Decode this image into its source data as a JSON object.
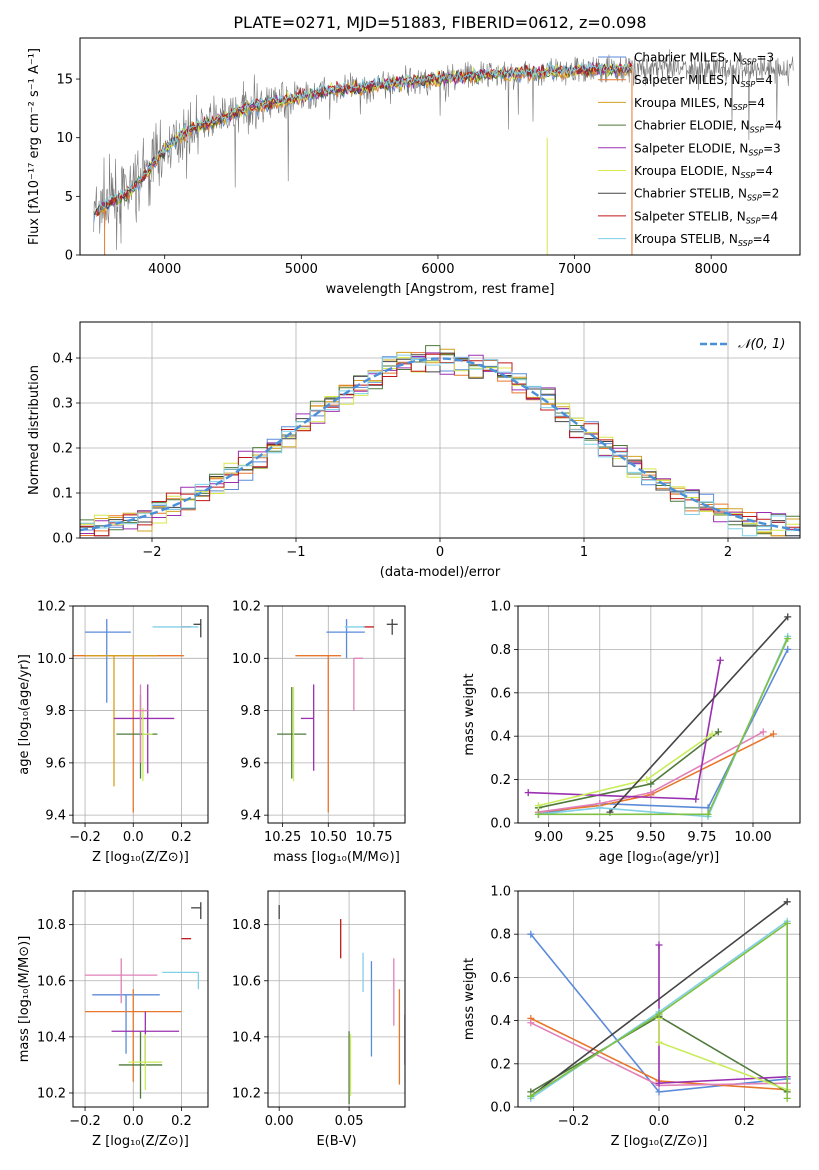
{
  "figure": {
    "title": "PLATE=0271, MJD=51883, FIBERID=0612, z=0.098"
  },
  "colors": {
    "chabrier_miles": "#5b8bd8",
    "salpeter_miles": "#e8772e",
    "kroupa_miles": "#d4a020",
    "chabrier_elodie": "#4f7a3a",
    "salpeter_elodie": "#9a30b0",
    "kroupa_elodie": "#d8e84a",
    "chabrier_stelib": "#444444",
    "salpeter_stelib": "#c01818",
    "kroupa_stelib": "#80d0e8",
    "pink": "#e080b8",
    "light_green": "#c8ec5a",
    "green": "#80c040",
    "gray_spectrum": "#777777",
    "normal_curve": "#4a90d9"
  },
  "chart_data": [
    {
      "id": "spectrum",
      "type": "line",
      "title": "PLATE=0271, MJD=51883, FIBERID=0612, z=0.098",
      "xlabel": "wavelength [Angstrom, rest frame]",
      "ylabel": "Flux [fλ10⁻¹⁷ erg cm⁻² s⁻¹ A⁻¹]",
      "xlim": [
        3380,
        8650
      ],
      "ylim": [
        0,
        18.5
      ],
      "xticks": [
        4000,
        5000,
        6000,
        7000,
        8000
      ],
      "yticks": [
        0,
        5,
        10,
        15
      ],
      "grid": false,
      "legend_placement": "right",
      "legend": [
        {
          "label": "Chabrier MILES, N",
          "sub": "SSP",
          "suffix": "=3",
          "color": "chabrier_miles"
        },
        {
          "label": "Salpeter MILES, N",
          "sub": "SSP",
          "suffix": "=4",
          "color": "salpeter_miles"
        },
        {
          "label": "Kroupa MILES, N",
          "sub": "SSP",
          "suffix": "=4",
          "color": "kroupa_miles"
        },
        {
          "label": "Chabrier ELODIE, N",
          "sub": "SSP",
          "suffix": "=4",
          "color": "chabrier_elodie"
        },
        {
          "label": "Salpeter ELODIE, N",
          "sub": "SSP",
          "suffix": "=3",
          "color": "salpeter_elodie"
        },
        {
          "label": "Kroupa ELODIE, N",
          "sub": "SSP",
          "suffix": "=4",
          "color": "kroupa_elodie"
        },
        {
          "label": "Chabrier STELIB, N",
          "sub": "SSP",
          "suffix": "=2",
          "color": "chabrier_stelib"
        },
        {
          "label": "Salpeter STELIB, N",
          "sub": "SSP",
          "suffix": "=4",
          "color": "salpeter_stelib"
        },
        {
          "label": "Kroupa STELIB, N",
          "sub": "SSP",
          "suffix": "=4",
          "color": "kroupa_stelib"
        }
      ],
      "continuum": {
        "x": [
          3480,
          3600,
          3700,
          3800,
          3900,
          4000,
          4100,
          4200,
          4300,
          4400,
          4500,
          4600,
          4800,
          5000,
          5200,
          5400,
          5600,
          5800,
          6000,
          6200,
          6400,
          6600,
          6800,
          7000,
          7200,
          7400
        ],
        "y": [
          3.5,
          4.5,
          5.0,
          6.0,
          7.5,
          9.0,
          10.0,
          10.8,
          11.2,
          11.5,
          12.0,
          12.5,
          13.0,
          13.5,
          14.0,
          14.2,
          14.5,
          14.8,
          15.0,
          15.2,
          15.4,
          15.5,
          15.6,
          15.7,
          15.8,
          15.9
        ]
      }
    },
    {
      "id": "residuals",
      "type": "line",
      "xlabel": "(data-model)/error",
      "ylabel": "Normed distribution",
      "xlim": [
        -2.5,
        2.5
      ],
      "ylim": [
        0,
        0.48
      ],
      "xticks": [
        -2,
        -1,
        0,
        1,
        2
      ],
      "yticks": [
        0.0,
        0.1,
        0.2,
        0.3,
        0.4
      ],
      "grid": true,
      "legend_placement": "top-right",
      "legend": [
        {
          "label": "𝒩(0, 1)",
          "color": "normal_curve",
          "style": "dashed"
        }
      ],
      "series_colors": [
        "chabrier_miles",
        "salpeter_miles",
        "kroupa_miles",
        "chabrier_elodie",
        "salpeter_elodie",
        "kroupa_elodie",
        "chabrier_stelib",
        "salpeter_stelib",
        "kroupa_stelib"
      ]
    },
    {
      "id": "Z-age",
      "type": "scatter",
      "xlabel": "Z [log₁₀(Z/Z⊙)]",
      "ylabel": "age  [log₁₀(age/yr)]",
      "xlim": [
        -0.25,
        0.31
      ],
      "ylim": [
        9.37,
        10.2
      ],
      "xticks": [
        -0.2,
        0.0,
        0.2
      ],
      "yticks": [
        9.4,
        9.6,
        9.8,
        10.0,
        10.2
      ],
      "grid": true,
      "points": [
        {
          "x": -0.11,
          "y": 10.1,
          "xerr": [
            0.09,
            0.1
          ],
          "yerr": [
            0.27,
            0.05
          ],
          "color": "chabrier_miles"
        },
        {
          "x": 0.0,
          "y": 10.01,
          "xerr": [
            0.25,
            0.21
          ],
          "yerr": [
            0.6,
            0.0
          ],
          "color": "salpeter_miles"
        },
        {
          "x": -0.08,
          "y": 10.01,
          "xerr": [
            0.12,
            0.18
          ],
          "yerr": [
            0.5,
            0.0
          ],
          "color": "kroupa_miles"
        },
        {
          "x": 0.03,
          "y": 9.71,
          "xerr": [
            0.1,
            0.07
          ],
          "yerr": [
            0.17,
            0.15
          ],
          "color": "chabrier_elodie"
        },
        {
          "x": 0.06,
          "y": 9.77,
          "xerr": [
            0.14,
            0.11
          ],
          "yerr": [
            0.21,
            0.13
          ],
          "color": "salpeter_elodie"
        },
        {
          "x": 0.04,
          "y": 9.71,
          "xerr": [
            0.0,
            0.04
          ],
          "yerr": [
            0.18,
            0.1
          ],
          "color": "light_green"
        },
        {
          "x": 0.28,
          "y": 10.13,
          "xerr": [
            0.03,
            0.0
          ],
          "yerr": [
            0.05,
            0.02
          ],
          "color": "chabrier_stelib"
        },
        {
          "x": 0.24,
          "y": 10.12,
          "xerr": [
            0.04,
            0.0
          ],
          "yerr": [
            0.0,
            0.0
          ],
          "color": "salpeter_stelib"
        },
        {
          "x": 0.17,
          "y": 10.12,
          "xerr": [
            0.09,
            0.1
          ],
          "yerr": [
            0.0,
            0.0
          ],
          "color": "kroupa_stelib"
        },
        {
          "x": 0.03,
          "y": 9.8,
          "xerr": [
            0.03,
            0.03
          ],
          "yerr": [
            0.2,
            0.1
          ],
          "color": "pink"
        }
      ]
    },
    {
      "id": "mass-age",
      "type": "scatter",
      "xlabel": "mass [log₁₀(M/M⊙)]",
      "xlim": [
        10.17,
        10.92
      ],
      "ylim": [
        9.37,
        10.2
      ],
      "xticks": [
        10.25,
        10.5,
        10.75
      ],
      "yticks": [
        9.4,
        9.6,
        9.8,
        10.0,
        10.2
      ],
      "grid": true,
      "points": [
        {
          "x": 10.6,
          "y": 10.1,
          "xerr": [
            0.11,
            0.1
          ],
          "yerr": [
            0.1,
            0.05
          ],
          "color": "chabrier_miles"
        },
        {
          "x": 10.5,
          "y": 10.01,
          "xerr": [
            0.18,
            0.07
          ],
          "yerr": [
            0.6,
            0.0
          ],
          "color": "salpeter_miles"
        },
        {
          "x": 10.64,
          "y": 10.0,
          "xerr": [
            0.0,
            0.05
          ],
          "yerr": [
            0.2,
            0.0
          ],
          "color": "pink"
        },
        {
          "x": 10.3,
          "y": 9.71,
          "xerr": [
            0.08,
            0.08
          ],
          "yerr": [
            0.17,
            0.18
          ],
          "color": "chabrier_elodie"
        },
        {
          "x": 10.42,
          "y": 9.77,
          "xerr": [
            0.07,
            0.0
          ],
          "yerr": [
            0.2,
            0.13
          ],
          "color": "salpeter_elodie"
        },
        {
          "x": 10.31,
          "y": 9.71,
          "xerr": [
            0.0,
            0.0
          ],
          "yerr": [
            0.18,
            0.18
          ],
          "color": "light_green"
        },
        {
          "x": 10.85,
          "y": 10.13,
          "xerr": [
            0.03,
            0.03
          ],
          "yerr": [
            0.04,
            0.02
          ],
          "color": "chabrier_stelib"
        },
        {
          "x": 10.75,
          "y": 10.12,
          "xerr": [
            0.06,
            0.0
          ],
          "yerr": [
            0.0,
            0.0
          ],
          "color": "salpeter_stelib"
        },
        {
          "x": 10.65,
          "y": 10.12,
          "xerr": [
            0.06,
            0.05
          ],
          "yerr": [
            0.0,
            0.0
          ],
          "color": "kroupa_stelib"
        }
      ]
    },
    {
      "id": "age-weight",
      "type": "line",
      "xlabel": "age  [log₁₀(age/yr)]",
      "ylabel": "mass weight",
      "xlim": [
        8.85,
        10.23
      ],
      "ylim": [
        0,
        1.0
      ],
      "xticks": [
        9.0,
        9.25,
        9.5,
        9.75,
        10.0
      ],
      "yticks": [
        0.0,
        0.2,
        0.4,
        0.6,
        0.8,
        1.0
      ],
      "grid": true,
      "series": [
        {
          "color": "chabrier_miles",
          "x": [
            8.95,
            9.25,
            9.78,
            10.17
          ],
          "y": [
            0.04,
            0.09,
            0.07,
            0.8
          ]
        },
        {
          "color": "salpeter_miles",
          "x": [
            8.95,
            9.25,
            9.5,
            10.1
          ],
          "y": [
            0.05,
            0.08,
            0.13,
            0.41
          ]
        },
        {
          "color": "pink",
          "x": [
            8.95,
            9.25,
            9.5,
            10.05
          ],
          "y": [
            0.05,
            0.09,
            0.14,
            0.42
          ]
        },
        {
          "color": "chabrier_elodie",
          "x": [
            8.95,
            9.5,
            9.83
          ],
          "y": [
            0.07,
            0.18,
            0.42
          ]
        },
        {
          "color": "salpeter_elodie",
          "x": [
            8.9,
            9.72,
            9.84
          ],
          "y": [
            0.14,
            0.11,
            0.75
          ]
        },
        {
          "color": "light_green",
          "x": [
            8.95,
            9.48,
            9.8
          ],
          "y": [
            0.08,
            0.2,
            0.41
          ]
        },
        {
          "color": "chabrier_stelib",
          "x": [
            9.3,
            10.17
          ],
          "y": [
            0.05,
            0.95
          ]
        },
        {
          "color": "kroupa_stelib",
          "x": [
            8.95,
            9.25,
            9.78,
            10.17
          ],
          "y": [
            0.04,
            0.07,
            0.03,
            0.86
          ]
        },
        {
          "color": "green",
          "x": [
            8.95,
            9.78,
            10.17
          ],
          "y": [
            0.04,
            0.04,
            0.85
          ]
        }
      ]
    },
    {
      "id": "Z-mass",
      "type": "scatter",
      "xlabel": "Z [log₁₀(Z/Z⊙)]",
      "ylabel": "mass [log₁₀(M/M⊙)]",
      "xlim": [
        -0.25,
        0.31
      ],
      "ylim": [
        10.15,
        10.92
      ],
      "xticks": [
        -0.2,
        0.0,
        0.2
      ],
      "yticks": [
        10.2,
        10.4,
        10.6,
        10.8
      ],
      "grid": true,
      "points": [
        {
          "x": -0.03,
          "y": 10.55,
          "xerr": [
            0.14,
            0.14
          ],
          "yerr": [
            0.21,
            0.0
          ],
          "color": "chabrier_miles"
        },
        {
          "x": 0.0,
          "y": 10.49,
          "xerr": [
            0.2,
            0.2
          ],
          "yerr": [
            0.25,
            0.08
          ],
          "color": "salpeter_miles"
        },
        {
          "x": -0.05,
          "y": 10.62,
          "xerr": [
            0.15,
            0.15
          ],
          "yerr": [
            0.1,
            0.06
          ],
          "color": "pink"
        },
        {
          "x": 0.03,
          "y": 10.3,
          "xerr": [
            0.09,
            0.09
          ],
          "yerr": [
            0.12,
            0.12
          ],
          "color": "chabrier_elodie"
        },
        {
          "x": 0.05,
          "y": 10.42,
          "xerr": [
            0.14,
            0.14
          ],
          "yerr": [
            0.12,
            0.07
          ],
          "color": "salpeter_elodie"
        },
        {
          "x": 0.05,
          "y": 10.31,
          "xerr": [
            0.07,
            0.07
          ],
          "yerr": [
            0.1,
            0.1
          ],
          "color": "light_green"
        },
        {
          "x": 0.28,
          "y": 10.86,
          "xerr": [
            0.04,
            0.0
          ],
          "yerr": [
            0.04,
            0.02
          ],
          "color": "chabrier_stelib"
        },
        {
          "x": 0.24,
          "y": 10.75,
          "xerr": [
            0.04,
            0.0
          ],
          "yerr": [
            0.0,
            0.0
          ],
          "color": "salpeter_stelib"
        },
        {
          "x": 0.27,
          "y": 10.63,
          "xerr": [
            0.15,
            0.0
          ],
          "yerr": [
            0.06,
            0.0
          ],
          "color": "kroupa_stelib"
        }
      ]
    },
    {
      "id": "EBV-mass",
      "type": "scatter",
      "xlabel": "E(B-V)",
      "xlim": [
        -0.008,
        0.09
      ],
      "ylim": [
        10.15,
        10.92
      ],
      "xticks": [
        0.0,
        0.05
      ],
      "yticks": [
        10.2,
        10.4,
        10.6,
        10.8
      ],
      "grid": true,
      "points": [
        {
          "x": 0.0,
          "y": 10.87,
          "yerr": [
            0.05,
            0.0
          ],
          "color": "chabrier_stelib"
        },
        {
          "x": 0.044,
          "y": 10.75,
          "yerr": [
            0.07,
            0.07
          ],
          "color": "salpeter_stelib"
        },
        {
          "x": 0.05,
          "y": 10.29,
          "yerr": [
            0.13,
            0.13
          ],
          "color": "chabrier_elodie"
        },
        {
          "x": 0.051,
          "y": 10.3,
          "yerr": [
            0.11,
            0.11
          ],
          "color": "light_green"
        },
        {
          "x": 0.06,
          "y": 10.63,
          "yerr": [
            0.07,
            0.07
          ],
          "color": "kroupa_stelib"
        },
        {
          "x": 0.066,
          "y": 10.5,
          "yerr": [
            0.17,
            0.17
          ],
          "color": "chabrier_miles"
        },
        {
          "x": 0.082,
          "y": 10.56,
          "yerr": [
            0.12,
            0.12
          ],
          "color": "pink"
        },
        {
          "x": 0.086,
          "y": 10.4,
          "yerr": [
            0.17,
            0.17
          ],
          "color": "salpeter_miles"
        },
        {
          "x": 0.09,
          "y": 10.39,
          "yerr": [
            0.09,
            0.09
          ],
          "color": "salpeter_elodie"
        }
      ]
    },
    {
      "id": "Z-weight",
      "type": "line",
      "xlabel": "Z [log₁₀(Z/Z⊙)]",
      "ylabel": "mass weight",
      "xlim": [
        -0.33,
        0.33
      ],
      "ylim": [
        0,
        1.0
      ],
      "xticks": [
        -0.2,
        0.0,
        0.2
      ],
      "yticks": [
        0.0,
        0.2,
        0.4,
        0.6,
        0.8,
        1.0
      ],
      "grid": true,
      "series": [
        {
          "color": "chabrier_miles",
          "x": [
            -0.3,
            0.0,
            0.3
          ],
          "y": [
            0.8,
            0.07,
            0.13
          ]
        },
        {
          "color": "salpeter_miles",
          "x": [
            -0.3,
            0.0,
            0.3
          ],
          "y": [
            0.41,
            0.12,
            0.08
          ]
        },
        {
          "color": "pink",
          "x": [
            -0.3,
            0.0,
            0.3
          ],
          "y": [
            0.39,
            0.1,
            0.11
          ]
        },
        {
          "color": "chabrier_elodie",
          "x": [
            -0.3,
            0.0,
            0.3
          ],
          "y": [
            0.07,
            0.42,
            0.07
          ]
        },
        {
          "color": "salpeter_elodie",
          "x": [
            0.0,
            0.0,
            0.3
          ],
          "y": [
            0.75,
            0.11,
            0.14
          ]
        },
        {
          "color": "light_green",
          "x": [
            0.0,
            0.0,
            0.3
          ],
          "y": [
            0.41,
            0.3,
            0.08
          ]
        },
        {
          "color": "chabrier_stelib",
          "x": [
            -0.3,
            0.3
          ],
          "y": [
            0.05,
            0.95
          ]
        },
        {
          "color": "kroupa_stelib",
          "x": [
            -0.3,
            0.0,
            0.3
          ],
          "y": [
            0.04,
            0.44,
            0.86
          ]
        },
        {
          "color": "green",
          "x": [
            -0.3,
            0.0,
            0.3,
            0.3
          ],
          "y": [
            0.05,
            0.43,
            0.85,
            0.04
          ]
        }
      ]
    }
  ]
}
